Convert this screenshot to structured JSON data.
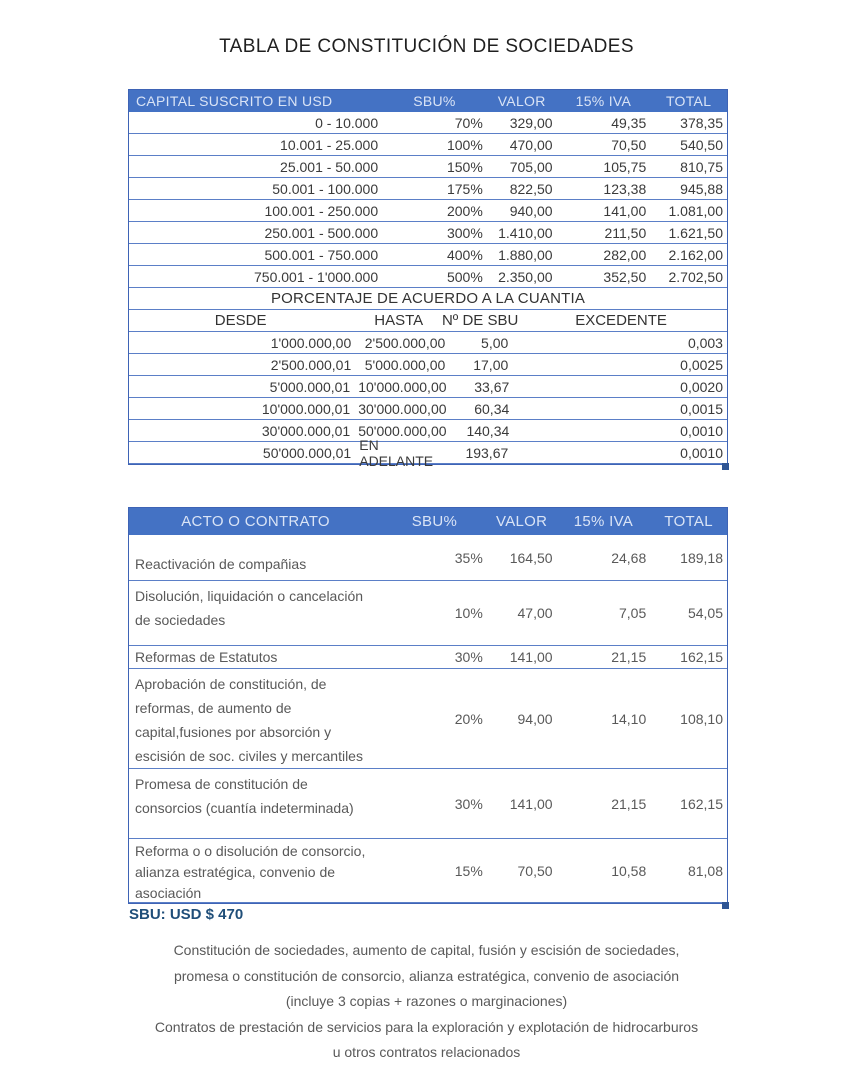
{
  "title": "TABLA DE CONSTITUCIÓN DE SOCIEDADES",
  "colors": {
    "header_bg": "#4472C4",
    "header_text": "#DAE4F6",
    "row_border": "#5B7FC7",
    "outer_border": "#3E63B5",
    "body_text": "#3A3A3A",
    "acts_text": "#595959",
    "sbu_note_text": "#1F4E79",
    "corner_mark": "#2E5595"
  },
  "capital_table": {
    "headers": [
      "CAPITAL SUSCRITO EN USD",
      "SBU%",
      "VALOR",
      "15% IVA",
      "TOTAL"
    ],
    "rows": [
      [
        "0 - 10.000",
        "70%",
        "329,00",
        "49,35",
        "378,35"
      ],
      [
        "10.001 - 25.000",
        "100%",
        "470,00",
        "70,50",
        "540,50"
      ],
      [
        "25.001 - 50.000",
        "150%",
        "705,00",
        "105,75",
        "810,75"
      ],
      [
        "50.001 - 100.000",
        "175%",
        "822,50",
        "123,38",
        "945,88"
      ],
      [
        "100.001 - 250.000",
        "200%",
        "940,00",
        "141,00",
        "1.081,00"
      ],
      [
        "250.001 - 500.000",
        "300%",
        "1.410,00",
        "211,50",
        "1.621,50"
      ],
      [
        "500.001 - 750.000",
        "400%",
        "1.880,00",
        "282,00",
        "2.162,00"
      ],
      [
        "750.001 - 1'000.000",
        "500%",
        "2.350,00",
        "352,50",
        "2.702,50"
      ]
    ],
    "section_title": "PORCENTAJE DE ACUERDO A LA CUANTIA",
    "sub_headers": [
      "DESDE",
      "HASTA",
      "Nº DE SBU",
      "EXCEDENTE"
    ],
    "sub_rows": [
      [
        "1'000.000,00",
        "2'500.000,00",
        "5,00",
        "0,003"
      ],
      [
        "2'500.000,01",
        "5'000.000,00",
        "17,00",
        "0,0025"
      ],
      [
        "5'000.000,01",
        "10'000.000,00",
        "33,67",
        "0,0020"
      ],
      [
        "10'000.000,01",
        "30'000.000,00",
        "60,34",
        "0,0015"
      ],
      [
        "30'000.000,01",
        "50'000.000,00",
        "140,34",
        "0,0010"
      ],
      [
        "50'000.000,01",
        "EN ADELANTE",
        "193,67",
        "0,0010"
      ]
    ]
  },
  "acts_table": {
    "headers": [
      "ACTO O CONTRATO",
      "SBU%",
      "VALOR",
      "15% IVA",
      "TOTAL"
    ],
    "rows": [
      {
        "label": "Reactivación de compañias",
        "sbu": "35%",
        "valor": "164,50",
        "iva": "24,68",
        "total": "189,18"
      },
      {
        "label": "Disolución, liquidación o cancelación\nde sociedades",
        "sbu": "10%",
        "valor": "47,00",
        "iva": "7,05",
        "total": "54,05"
      },
      {
        "label": "Reformas de Estatutos",
        "sbu": "30%",
        "valor": "141,00",
        "iva": "21,15",
        "total": "162,15"
      },
      {
        "label": "Aprobación de constitución, de\nreformas, de aumento de\ncapital,fusiones por absorción y\nescisión de soc. civiles y mercantiles",
        "sbu": "20%",
        "valor": "94,00",
        "iva": "14,10",
        "total": "108,10"
      },
      {
        "label": "Promesa de constitución de\nconsorcios (cuantía indeterminada)",
        "sbu": "30%",
        "valor": "141,00",
        "iva": "21,15",
        "total": "162,15"
      },
      {
        "label": "Reforma o o disolución de consorcio,\nalianza estratégica, convenio de\nasociación",
        "sbu": "15%",
        "valor": "70,50",
        "iva": "10,58",
        "total": "81,08"
      }
    ]
  },
  "sbu_note": "SBU: USD $ 470",
  "footer_lines": [
    "Constitución de sociedades, aumento de capital, fusión y escisión de sociedades,",
    "promesa o constitución de consorcio, alianza estratégica, convenio de asociación",
    "(incluye 3 copias + razones o marginaciones)",
    "Contratos de prestación de servicios para la exploración y explotación de hidrocarburos",
    "u otros contratos relacionados"
  ]
}
